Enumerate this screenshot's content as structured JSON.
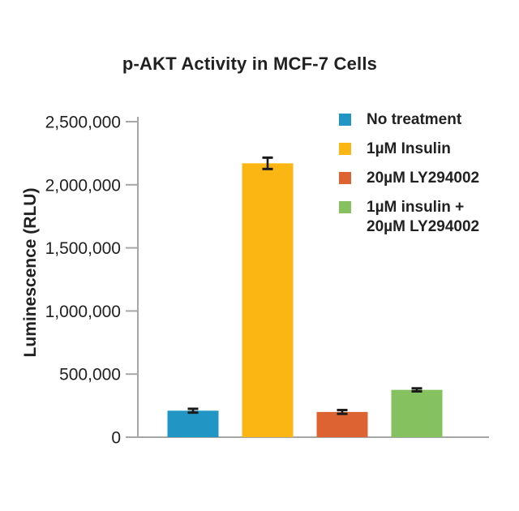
{
  "chart_data": {
    "type": "bar",
    "title": "p-AKT Activity in MCF-7 Cells",
    "ylabel": "Luminescence (RLU)",
    "xlabel": "",
    "ylim": [
      0,
      2500000
    ],
    "yticks": [
      0,
      500000,
      1000000,
      1500000,
      2000000,
      2500000
    ],
    "ytick_labels": [
      "0",
      "500,000",
      "1,000,000",
      "1,500,000",
      "2,000,000",
      "2,500,000"
    ],
    "grid": false,
    "legend_position": "top-right",
    "categories": [
      "No treatment",
      "1µM Insulin",
      "20µM LY294002",
      "1µM insulin + 20µM LY294002"
    ],
    "values": [
      210000,
      2170000,
      200000,
      375000
    ],
    "errors": [
      15000,
      45000,
      15000,
      12000
    ],
    "colors": [
      "#2196C4",
      "#FCB614",
      "#DD6333",
      "#85C15E"
    ],
    "legend_labels_lines": [
      [
        "No treatment"
      ],
      [
        "1µM Insulin"
      ],
      [
        "20µM LY294002"
      ],
      [
        "1µM insulin +",
        "20µM LY294002"
      ]
    ],
    "axis_color": "#A6A6A6",
    "error_bar_color": "#1A1A1A",
    "text_color": "#212121"
  }
}
